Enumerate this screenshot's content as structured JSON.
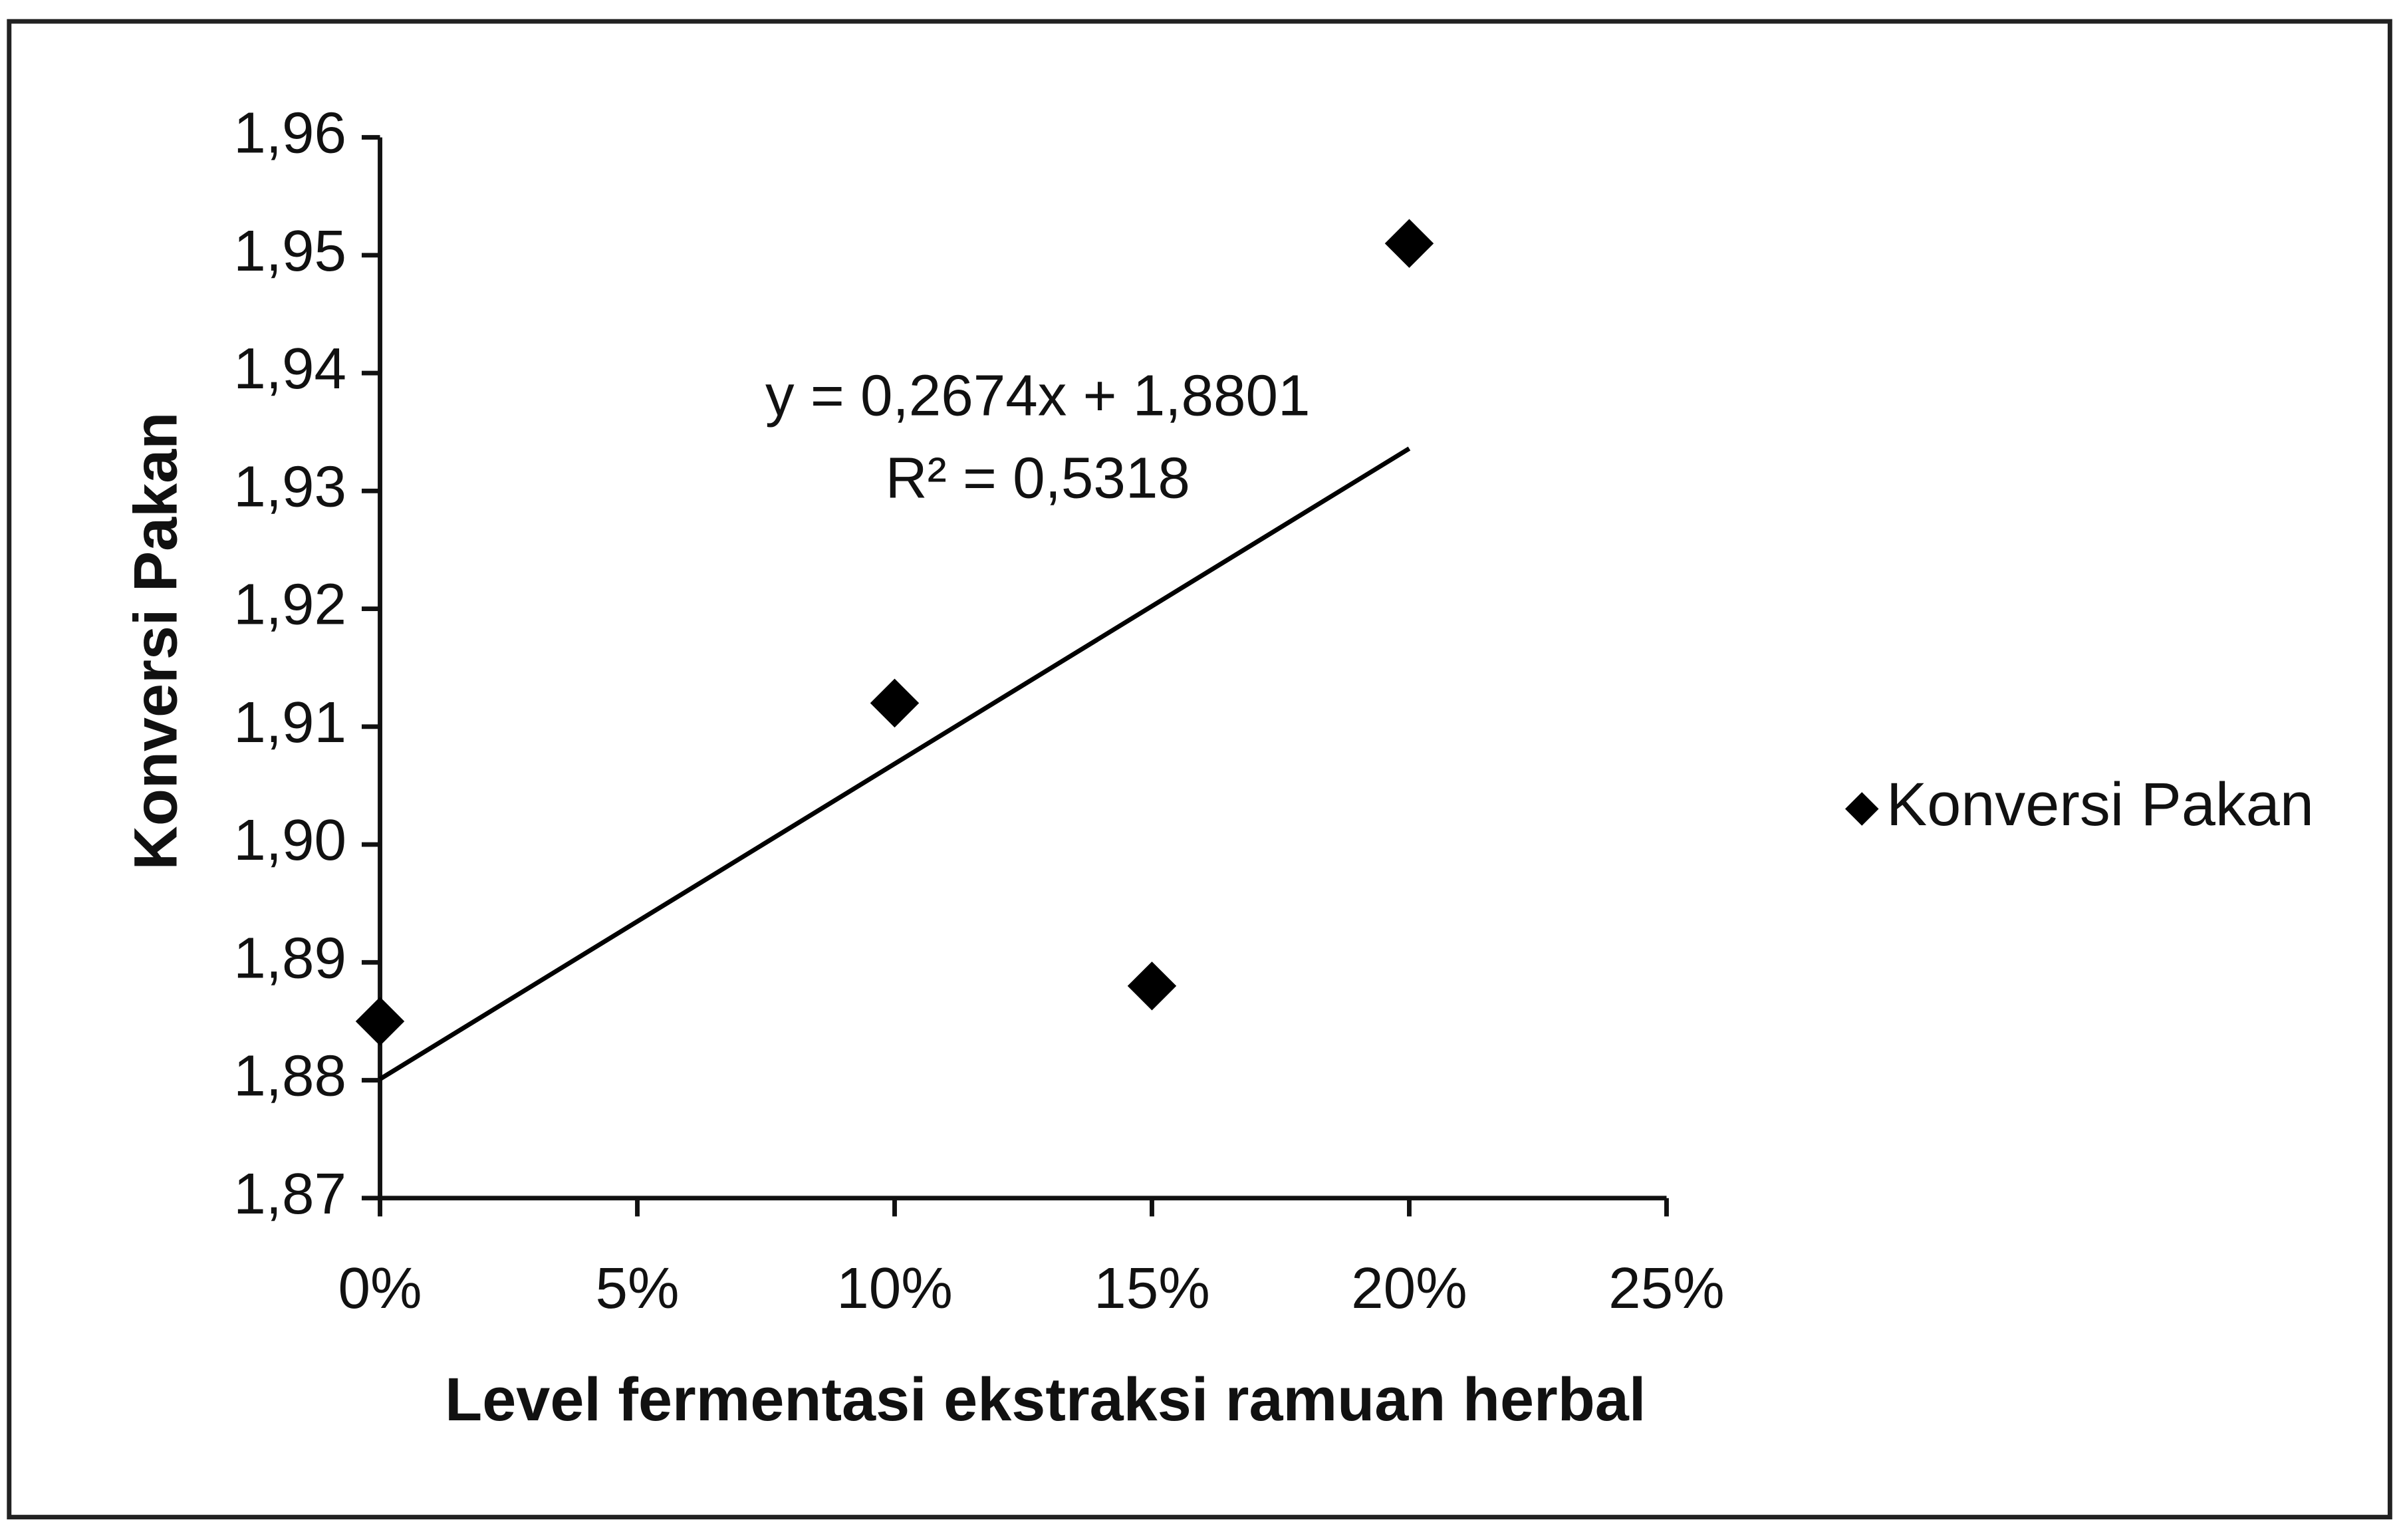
{
  "chart_data": {
    "type": "scatter",
    "x_label": "Level fermentasi ekstraksi ramuan herbal",
    "y_label": "Konversi Pakan",
    "annotations": [
      "y = 0,2674x + 1,8801",
      "R² = 0,5318"
    ],
    "series": [
      {
        "name": "Konversi Pakan",
        "color": "#000000",
        "x": [
          0,
          10,
          15,
          20
        ],
        "values": [
          1.885,
          1.912,
          1.888,
          1.951
        ]
      }
    ],
    "trendline": {
      "color": "#000000",
      "x": [
        0,
        20
      ],
      "values": [
        1.8801,
        1.9336
      ]
    },
    "xlim": [
      0,
      25
    ],
    "xticks": [
      {
        "value": 0,
        "label": "0%"
      },
      {
        "value": 5,
        "label": "5%"
      },
      {
        "value": 10,
        "label": "10%"
      },
      {
        "value": 15,
        "label": "15%"
      },
      {
        "value": 20,
        "label": "20%"
      },
      {
        "value": 25,
        "label": "25%"
      }
    ],
    "ylim": [
      1.87,
      1.96
    ],
    "yticks": [
      {
        "value": 1.87,
        "label": "1,87"
      },
      {
        "value": 1.88,
        "label": "1,88"
      },
      {
        "value": 1.89,
        "label": "1,89"
      },
      {
        "value": 1.9,
        "label": "1,90"
      },
      {
        "value": 1.91,
        "label": "1,91"
      },
      {
        "value": 1.92,
        "label": "1,92"
      },
      {
        "value": 1.93,
        "label": "1,93"
      },
      {
        "value": 1.94,
        "label": "1,94"
      },
      {
        "value": 1.95,
        "label": "1,95"
      },
      {
        "value": 1.96,
        "label": "1,96"
      }
    ],
    "grid": false,
    "legend": "right"
  }
}
